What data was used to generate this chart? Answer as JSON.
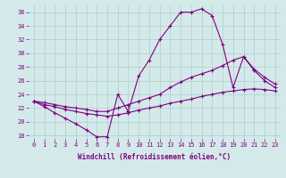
{
  "xlabel": "Windchill (Refroidissement éolien,°C)",
  "xlim": [
    -0.5,
    23.5
  ],
  "ylim": [
    17.5,
    37
  ],
  "yticks": [
    18,
    20,
    22,
    24,
    26,
    28,
    30,
    32,
    34,
    36
  ],
  "xticks": [
    0,
    1,
    2,
    3,
    4,
    5,
    6,
    7,
    8,
    9,
    10,
    11,
    12,
    13,
    14,
    15,
    16,
    17,
    18,
    19,
    20,
    21,
    22,
    23
  ],
  "bg_color": "#d4eaea",
  "line_color": "#800080",
  "grid_color": "#b0cccc",
  "line1_x": [
    0,
    1,
    2,
    3,
    4,
    5,
    6,
    7,
    8,
    9,
    10,
    11,
    12,
    13,
    14,
    15,
    16,
    17,
    18,
    19,
    20,
    21,
    22,
    23
  ],
  "line1_y": [
    23,
    22.2,
    21.3,
    20.5,
    19.7,
    18.8,
    17.8,
    17.8,
    24,
    21.5,
    26.7,
    29,
    32,
    34,
    36,
    36,
    36.5,
    35.5,
    31.3,
    25,
    29.5,
    27.5,
    26,
    25
  ],
  "line2_x": [
    0,
    1,
    2,
    3,
    4,
    5,
    6,
    7,
    8,
    9,
    10,
    11,
    12,
    13,
    14,
    15,
    16,
    17,
    18,
    19,
    20,
    21,
    22,
    23
  ],
  "line2_y": [
    23,
    22.8,
    22.5,
    22.2,
    22.0,
    21.8,
    21.5,
    21.5,
    22.0,
    22.5,
    23.0,
    23.5,
    24.0,
    25.0,
    25.8,
    26.5,
    27.0,
    27.5,
    28.2,
    29.0,
    29.5,
    27.7,
    26.5,
    25.5
  ],
  "line3_x": [
    0,
    1,
    2,
    3,
    4,
    5,
    6,
    7,
    8,
    9,
    10,
    11,
    12,
    13,
    14,
    15,
    16,
    17,
    18,
    19,
    20,
    21,
    22,
    23
  ],
  "line3_y": [
    23,
    22.5,
    22.2,
    21.8,
    21.5,
    21.2,
    21.0,
    20.8,
    21.0,
    21.3,
    21.7,
    22.0,
    22.3,
    22.7,
    23.0,
    23.3,
    23.7,
    24.0,
    24.3,
    24.5,
    24.7,
    24.8,
    24.7,
    24.5
  ]
}
